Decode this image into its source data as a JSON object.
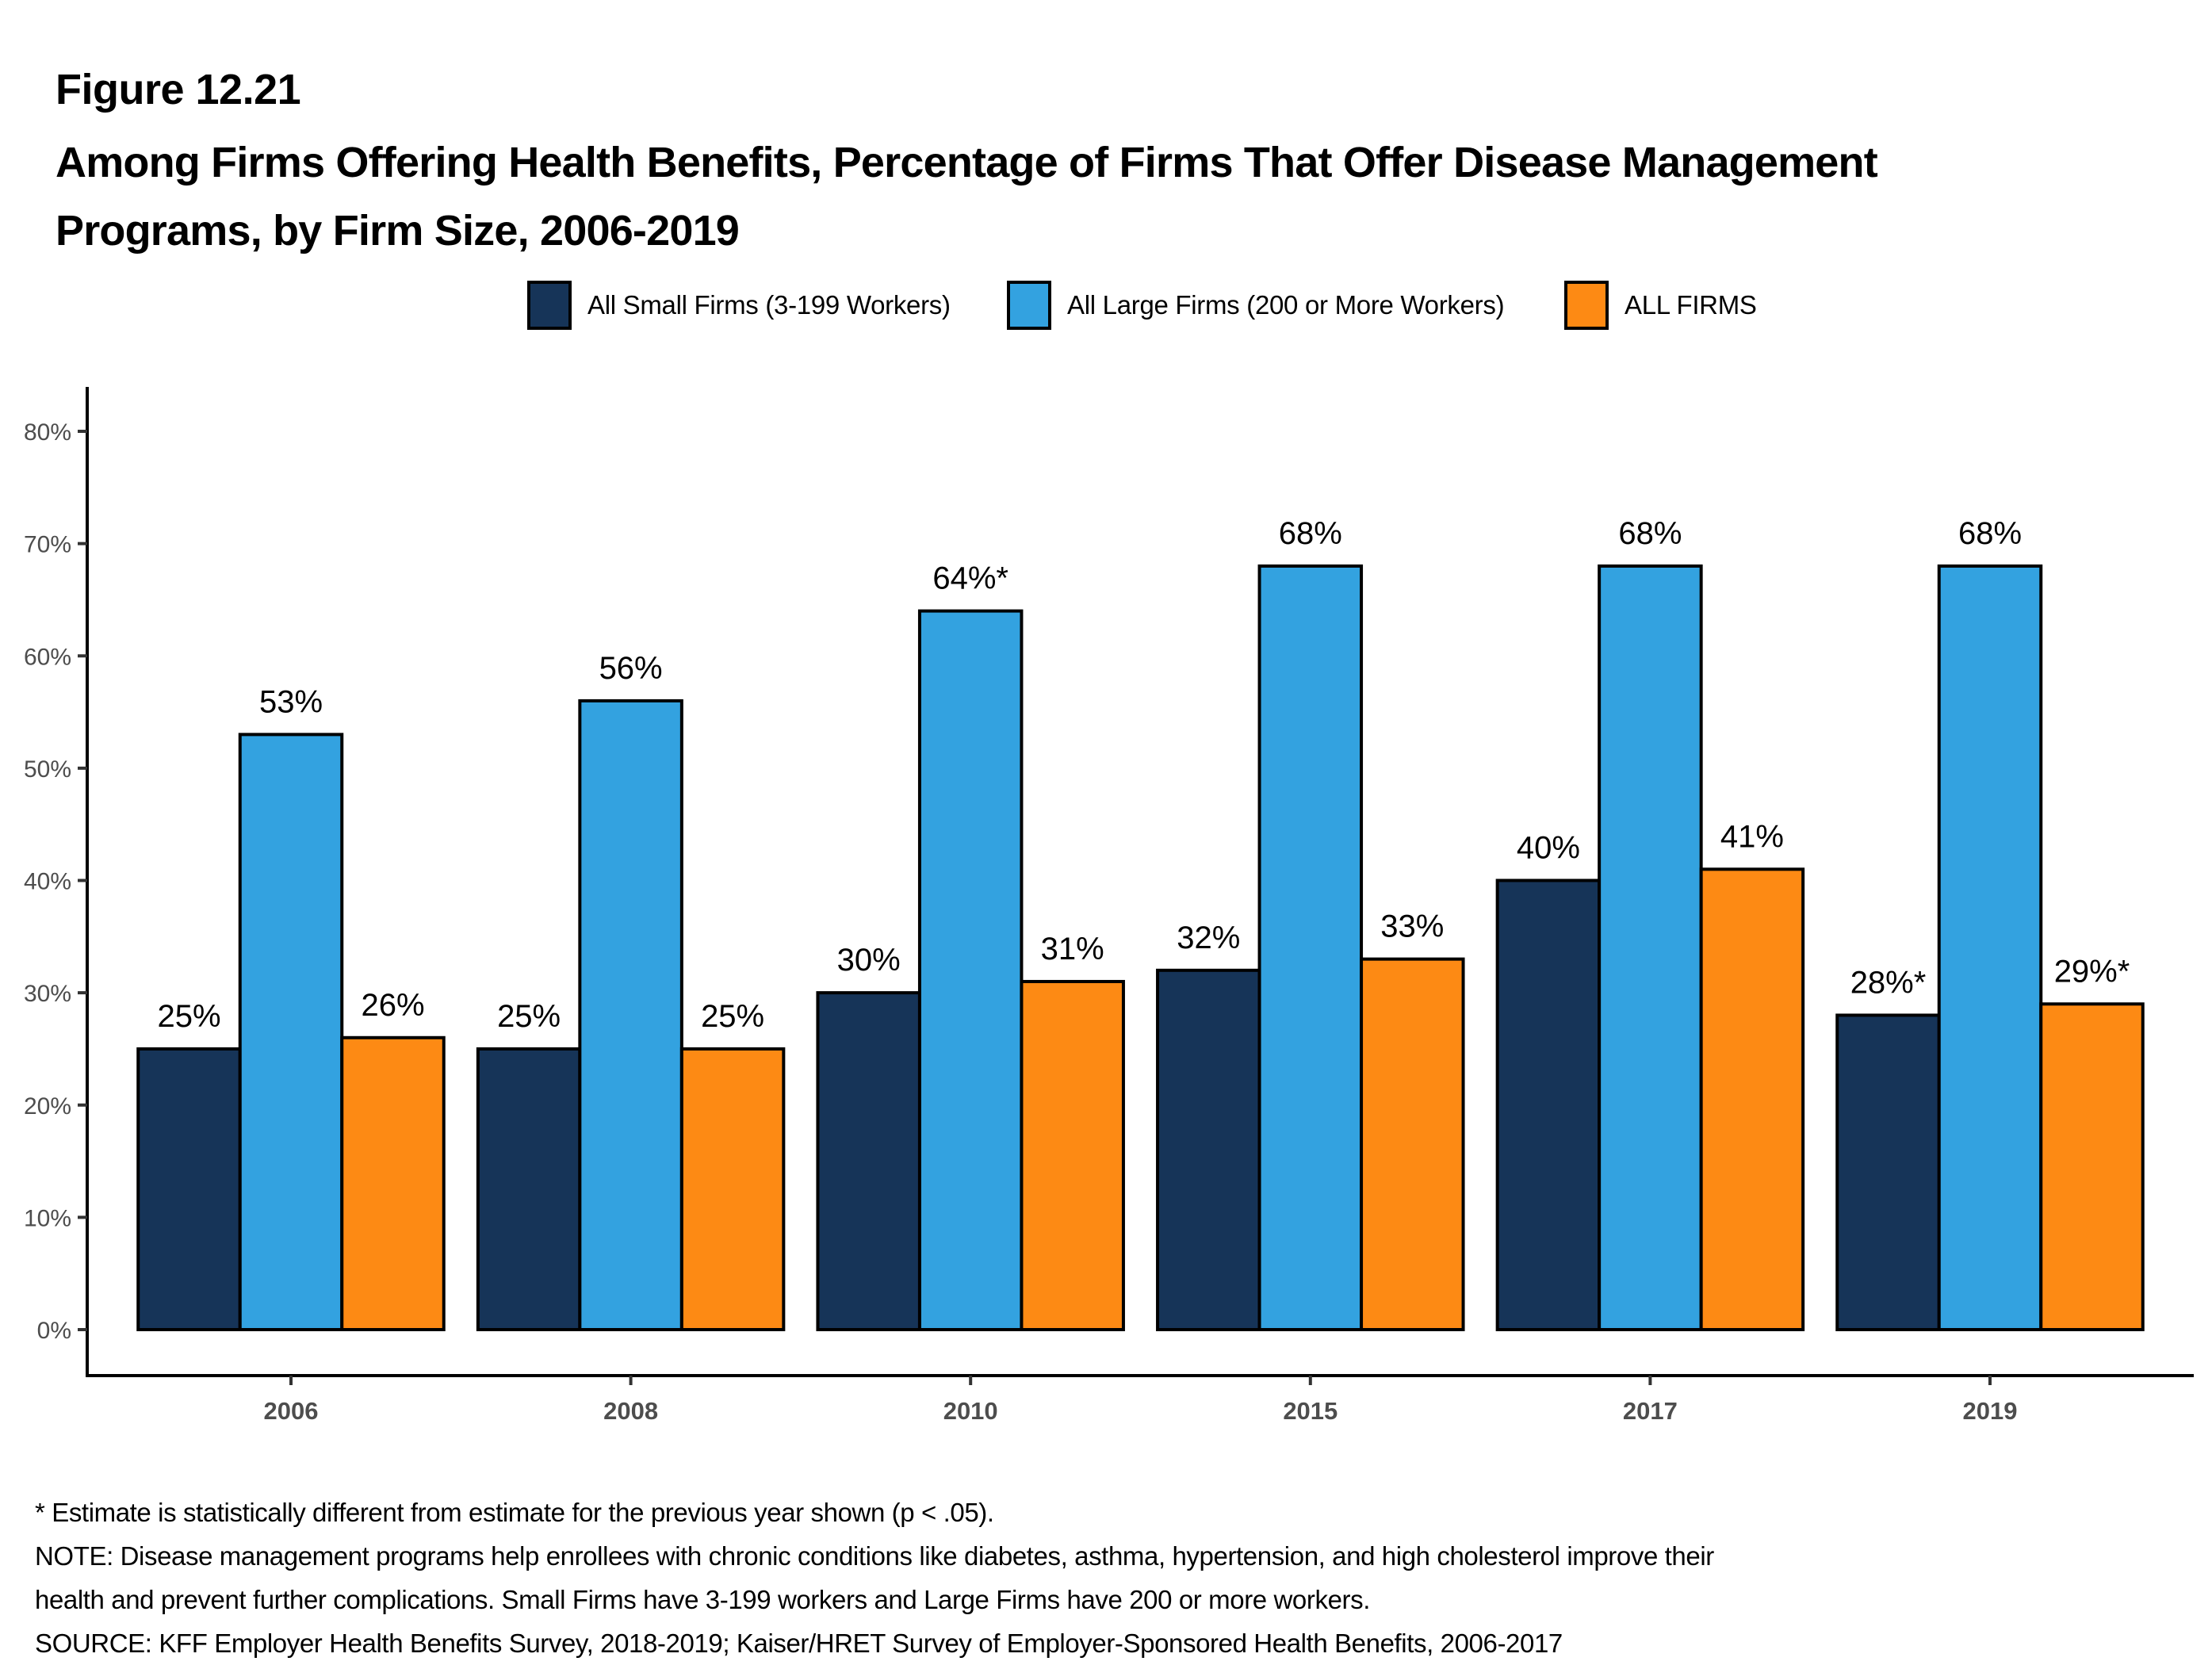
{
  "figure": {
    "number": "Figure 12.21",
    "title_lines": [
      "Among Firms Offering Health Benefits, Percentage of Firms That Offer Disease Management",
      "Programs, by Firm Size, 2006-2019"
    ]
  },
  "legend": [
    {
      "label": "All Small Firms (3-199 Workers)",
      "color": "#163458"
    },
    {
      "label": "All Large Firms (200 or More Workers)",
      "color": "#33a2e0"
    },
    {
      "label": "ALL FIRMS",
      "color": "#fd8a14"
    }
  ],
  "footnotes": [
    "* Estimate is statistically different from estimate for the previous year shown (p < .05).",
    "NOTE: Disease management programs help enrollees with chronic conditions like diabetes, asthma, hypertension, and high cholesterol improve their",
    "health and prevent further complications. Small Firms have 3-199 workers and Large Firms have 200 or more workers.",
    "SOURCE: KFF Employer Health Benefits Survey, 2018-2019; Kaiser/HRET Survey of Employer-Sponsored Health Benefits, 2006-2017"
  ],
  "chart_data": {
    "type": "bar",
    "title": "Among Firms Offering Health Benefits, Percentage of Firms That Offer Disease Management Programs, by Firm Size, 2006-2019",
    "xlabel": "",
    "ylabel": "",
    "categories": [
      "2006",
      "2008",
      "2010",
      "2015",
      "2017",
      "2019"
    ],
    "ylim": [
      0,
      80
    ],
    "yticks": [
      0,
      10,
      20,
      30,
      40,
      50,
      60,
      70,
      80
    ],
    "ytick_labels": [
      "0%",
      "10%",
      "20%",
      "30%",
      "40%",
      "50%",
      "60%",
      "70%",
      "80%"
    ],
    "grid": false,
    "legend_position": "top-center",
    "series": [
      {
        "name": "All Small Firms (3-199 Workers)",
        "color": "#163458",
        "values": [
          25,
          25,
          30,
          32,
          40,
          28
        ],
        "labels": [
          "25%",
          "25%",
          "30%",
          "32%",
          "40%",
          "28%*"
        ]
      },
      {
        "name": "All Large Firms (200 or More Workers)",
        "color": "#33a2e0",
        "values": [
          53,
          56,
          64,
          68,
          68,
          68
        ],
        "labels": [
          "53%",
          "56%",
          "64%*",
          "68%",
          "68%",
          "68%"
        ]
      },
      {
        "name": "ALL FIRMS",
        "color": "#fd8a14",
        "values": [
          26,
          25,
          31,
          33,
          41,
          29
        ],
        "labels": [
          "26%",
          "25%",
          "31%",
          "33%",
          "41%",
          "29%*"
        ]
      }
    ],
    "annotations": [
      "* Estimate is statistically different from estimate for the previous year shown (p < .05)."
    ]
  }
}
